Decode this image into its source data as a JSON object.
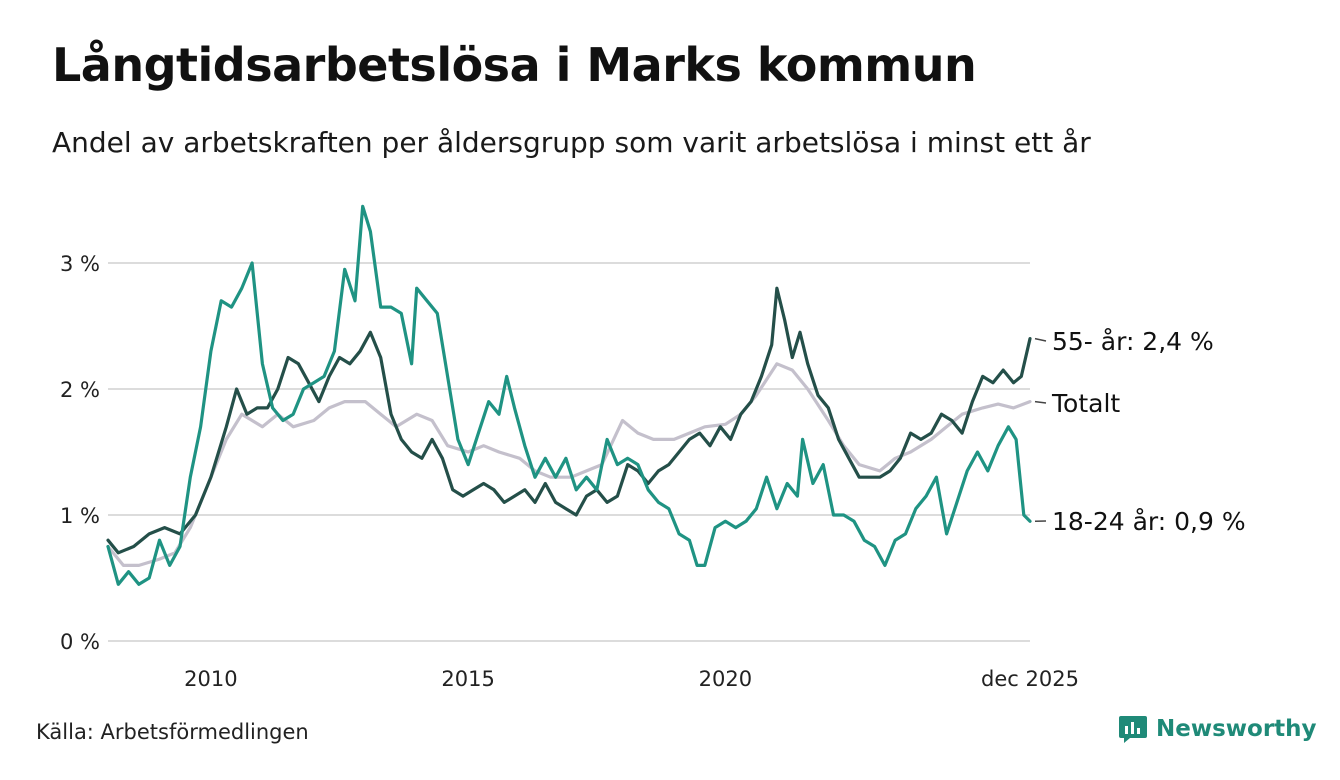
{
  "title": "Långtidsarbetslösa i Marks kommun",
  "subtitle": "Andel av arbetskraften per åldersgrupp som varit arbetslösa i minst ett år",
  "source": "Källa: Arbetsförmedlingen",
  "brand": {
    "name": "Newsworthy",
    "icon": "bar-chart-logo-icon",
    "color": "#1f8a78"
  },
  "chart_data": {
    "type": "line",
    "x_unit": "year",
    "xlim": [
      2008.0,
      2025.92
    ],
    "ylim": [
      0,
      3.4
    ],
    "x_ticks": [
      {
        "value": 2010,
        "label": "2010"
      },
      {
        "value": 2015,
        "label": "2015"
      },
      {
        "value": 2020,
        "label": "2020"
      },
      {
        "value": 2025.92,
        "label": "dec 2025"
      }
    ],
    "y_ticks": [
      {
        "value": 0,
        "label": "0 %"
      },
      {
        "value": 1,
        "label": "1 %"
      },
      {
        "value": 2,
        "label": "2 %"
      },
      {
        "value": 3,
        "label": "3 %"
      }
    ],
    "grid": true,
    "series": [
      {
        "name": "Totalt",
        "end_label": "Totalt",
        "color": "#c4c0cc",
        "points": [
          [
            2008.0,
            0.75
          ],
          [
            2008.3,
            0.6
          ],
          [
            2008.6,
            0.6
          ],
          [
            2009.0,
            0.65
          ],
          [
            2009.3,
            0.7
          ],
          [
            2009.6,
            0.9
          ],
          [
            2009.9,
            1.2
          ],
          [
            2010.3,
            1.6
          ],
          [
            2010.6,
            1.8
          ],
          [
            2011.0,
            1.7
          ],
          [
            2011.3,
            1.8
          ],
          [
            2011.6,
            1.7
          ],
          [
            2012.0,
            1.75
          ],
          [
            2012.3,
            1.85
          ],
          [
            2012.6,
            1.9
          ],
          [
            2013.0,
            1.9
          ],
          [
            2013.3,
            1.8
          ],
          [
            2013.6,
            1.7
          ],
          [
            2014.0,
            1.8
          ],
          [
            2014.3,
            1.75
          ],
          [
            2014.6,
            1.55
          ],
          [
            2015.0,
            1.5
          ],
          [
            2015.3,
            1.55
          ],
          [
            2015.6,
            1.5
          ],
          [
            2016.0,
            1.45
          ],
          [
            2016.3,
            1.35
          ],
          [
            2016.6,
            1.3
          ],
          [
            2017.0,
            1.3
          ],
          [
            2017.3,
            1.35
          ],
          [
            2017.6,
            1.4
          ],
          [
            2018.0,
            1.75
          ],
          [
            2018.3,
            1.65
          ],
          [
            2018.6,
            1.6
          ],
          [
            2019.0,
            1.6
          ],
          [
            2019.3,
            1.65
          ],
          [
            2019.6,
            1.7
          ],
          [
            2020.0,
            1.72
          ],
          [
            2020.3,
            1.8
          ],
          [
            2020.6,
            1.95
          ],
          [
            2021.0,
            2.2
          ],
          [
            2021.3,
            2.15
          ],
          [
            2021.6,
            2.0
          ],
          [
            2022.0,
            1.75
          ],
          [
            2022.3,
            1.55
          ],
          [
            2022.6,
            1.4
          ],
          [
            2023.0,
            1.35
          ],
          [
            2023.3,
            1.45
          ],
          [
            2023.6,
            1.5
          ],
          [
            2024.0,
            1.6
          ],
          [
            2024.3,
            1.7
          ],
          [
            2024.6,
            1.8
          ],
          [
            2025.0,
            1.85
          ],
          [
            2025.3,
            1.88
          ],
          [
            2025.6,
            1.85
          ],
          [
            2025.92,
            1.9
          ]
        ]
      },
      {
        "name": "55- år",
        "end_label": "55- år: 2,4 %",
        "color": "#244f49",
        "points": [
          [
            2008.0,
            0.8
          ],
          [
            2008.2,
            0.7
          ],
          [
            2008.5,
            0.75
          ],
          [
            2008.8,
            0.85
          ],
          [
            2009.1,
            0.9
          ],
          [
            2009.4,
            0.85
          ],
          [
            2009.7,
            1.0
          ],
          [
            2010.0,
            1.3
          ],
          [
            2010.3,
            1.7
          ],
          [
            2010.5,
            2.0
          ],
          [
            2010.7,
            1.8
          ],
          [
            2010.9,
            1.85
          ],
          [
            2011.1,
            1.85
          ],
          [
            2011.3,
            2.0
          ],
          [
            2011.5,
            2.25
          ],
          [
            2011.7,
            2.2
          ],
          [
            2011.9,
            2.05
          ],
          [
            2012.1,
            1.9
          ],
          [
            2012.3,
            2.1
          ],
          [
            2012.5,
            2.25
          ],
          [
            2012.7,
            2.2
          ],
          [
            2012.9,
            2.3
          ],
          [
            2013.1,
            2.45
          ],
          [
            2013.3,
            2.25
          ],
          [
            2013.5,
            1.8
          ],
          [
            2013.7,
            1.6
          ],
          [
            2013.9,
            1.5
          ],
          [
            2014.1,
            1.45
          ],
          [
            2014.3,
            1.6
          ],
          [
            2014.5,
            1.45
          ],
          [
            2014.7,
            1.2
          ],
          [
            2014.9,
            1.15
          ],
          [
            2015.1,
            1.2
          ],
          [
            2015.3,
            1.25
          ],
          [
            2015.5,
            1.2
          ],
          [
            2015.7,
            1.1
          ],
          [
            2015.9,
            1.15
          ],
          [
            2016.1,
            1.2
          ],
          [
            2016.3,
            1.1
          ],
          [
            2016.5,
            1.25
          ],
          [
            2016.7,
            1.1
          ],
          [
            2016.9,
            1.05
          ],
          [
            2017.1,
            1.0
          ],
          [
            2017.3,
            1.15
          ],
          [
            2017.5,
            1.2
          ],
          [
            2017.7,
            1.1
          ],
          [
            2017.9,
            1.15
          ],
          [
            2018.1,
            1.4
          ],
          [
            2018.3,
            1.35
          ],
          [
            2018.5,
            1.25
          ],
          [
            2018.7,
            1.35
          ],
          [
            2018.9,
            1.4
          ],
          [
            2019.1,
            1.5
          ],
          [
            2019.3,
            1.6
          ],
          [
            2019.5,
            1.65
          ],
          [
            2019.7,
            1.55
          ],
          [
            2019.9,
            1.7
          ],
          [
            2020.1,
            1.6
          ],
          [
            2020.3,
            1.8
          ],
          [
            2020.5,
            1.9
          ],
          [
            2020.7,
            2.1
          ],
          [
            2020.9,
            2.35
          ],
          [
            2021.0,
            2.8
          ],
          [
            2021.15,
            2.55
          ],
          [
            2021.3,
            2.25
          ],
          [
            2021.45,
            2.45
          ],
          [
            2021.6,
            2.2
          ],
          [
            2021.8,
            1.95
          ],
          [
            2022.0,
            1.85
          ],
          [
            2022.2,
            1.6
          ],
          [
            2022.4,
            1.45
          ],
          [
            2022.6,
            1.3
          ],
          [
            2022.8,
            1.3
          ],
          [
            2023.0,
            1.3
          ],
          [
            2023.2,
            1.35
          ],
          [
            2023.4,
            1.45
          ],
          [
            2023.6,
            1.65
          ],
          [
            2023.8,
            1.6
          ],
          [
            2024.0,
            1.65
          ],
          [
            2024.2,
            1.8
          ],
          [
            2024.4,
            1.75
          ],
          [
            2024.6,
            1.65
          ],
          [
            2024.8,
            1.9
          ],
          [
            2025.0,
            2.1
          ],
          [
            2025.2,
            2.05
          ],
          [
            2025.4,
            2.15
          ],
          [
            2025.6,
            2.05
          ],
          [
            2025.75,
            2.1
          ],
          [
            2025.92,
            2.4
          ]
        ]
      },
      {
        "name": "18-24 år",
        "end_label": "18-24 år: 0,9 %",
        "color": "#1f9383",
        "points": [
          [
            2008.0,
            0.75
          ],
          [
            2008.2,
            0.45
          ],
          [
            2008.4,
            0.55
          ],
          [
            2008.6,
            0.45
          ],
          [
            2008.8,
            0.5
          ],
          [
            2009.0,
            0.8
          ],
          [
            2009.2,
            0.6
          ],
          [
            2009.4,
            0.75
          ],
          [
            2009.6,
            1.3
          ],
          [
            2009.8,
            1.7
          ],
          [
            2010.0,
            2.3
          ],
          [
            2010.2,
            2.7
          ],
          [
            2010.4,
            2.65
          ],
          [
            2010.6,
            2.8
          ],
          [
            2010.8,
            3.0
          ],
          [
            2011.0,
            2.2
          ],
          [
            2011.2,
            1.85
          ],
          [
            2011.4,
            1.75
          ],
          [
            2011.6,
            1.8
          ],
          [
            2011.8,
            2.0
          ],
          [
            2012.0,
            2.05
          ],
          [
            2012.2,
            2.1
          ],
          [
            2012.4,
            2.3
          ],
          [
            2012.6,
            2.95
          ],
          [
            2012.8,
            2.7
          ],
          [
            2012.95,
            3.45
          ],
          [
            2013.1,
            3.25
          ],
          [
            2013.3,
            2.65
          ],
          [
            2013.5,
            2.65
          ],
          [
            2013.7,
            2.6
          ],
          [
            2013.9,
            2.2
          ],
          [
            2014.0,
            2.8
          ],
          [
            2014.2,
            2.7
          ],
          [
            2014.4,
            2.6
          ],
          [
            2014.6,
            2.1
          ],
          [
            2014.8,
            1.6
          ],
          [
            2015.0,
            1.4
          ],
          [
            2015.2,
            1.65
          ],
          [
            2015.4,
            1.9
          ],
          [
            2015.6,
            1.8
          ],
          [
            2015.75,
            2.1
          ],
          [
            2015.9,
            1.85
          ],
          [
            2016.1,
            1.55
          ],
          [
            2016.3,
            1.3
          ],
          [
            2016.5,
            1.45
          ],
          [
            2016.7,
            1.3
          ],
          [
            2016.9,
            1.45
          ],
          [
            2017.1,
            1.2
          ],
          [
            2017.3,
            1.3
          ],
          [
            2017.5,
            1.2
          ],
          [
            2017.7,
            1.6
          ],
          [
            2017.9,
            1.4
          ],
          [
            2018.1,
            1.45
          ],
          [
            2018.3,
            1.4
          ],
          [
            2018.5,
            1.2
          ],
          [
            2018.7,
            1.1
          ],
          [
            2018.9,
            1.05
          ],
          [
            2019.1,
            0.85
          ],
          [
            2019.3,
            0.8
          ],
          [
            2019.45,
            0.6
          ],
          [
            2019.6,
            0.6
          ],
          [
            2019.8,
            0.9
          ],
          [
            2020.0,
            0.95
          ],
          [
            2020.2,
            0.9
          ],
          [
            2020.4,
            0.95
          ],
          [
            2020.6,
            1.05
          ],
          [
            2020.8,
            1.3
          ],
          [
            2021.0,
            1.05
          ],
          [
            2021.2,
            1.25
          ],
          [
            2021.4,
            1.15
          ],
          [
            2021.5,
            1.6
          ],
          [
            2021.7,
            1.25
          ],
          [
            2021.9,
            1.4
          ],
          [
            2022.1,
            1.0
          ],
          [
            2022.3,
            1.0
          ],
          [
            2022.5,
            0.95
          ],
          [
            2022.7,
            0.8
          ],
          [
            2022.9,
            0.75
          ],
          [
            2023.1,
            0.6
          ],
          [
            2023.3,
            0.8
          ],
          [
            2023.5,
            0.85
          ],
          [
            2023.7,
            1.05
          ],
          [
            2023.9,
            1.15
          ],
          [
            2024.1,
            1.3
          ],
          [
            2024.3,
            0.85
          ],
          [
            2024.5,
            1.1
          ],
          [
            2024.7,
            1.35
          ],
          [
            2024.9,
            1.5
          ],
          [
            2025.1,
            1.35
          ],
          [
            2025.3,
            1.55
          ],
          [
            2025.5,
            1.7
          ],
          [
            2025.65,
            1.6
          ],
          [
            2025.8,
            1.0
          ],
          [
            2025.92,
            0.95
          ]
        ]
      }
    ]
  }
}
